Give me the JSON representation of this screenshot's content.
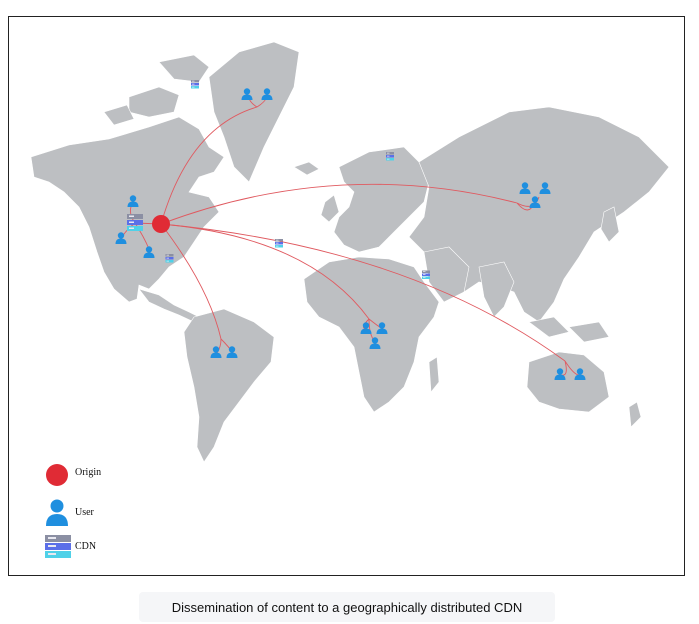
{
  "legend": {
    "origin_label": "Origin",
    "user_label": "User",
    "cdn_label": "CDN"
  },
  "caption": "Dissemination of content to a geographically distributed CDN",
  "colors": {
    "land": "#bdbfc2",
    "origin": "#e02b35",
    "link": "#e05a60",
    "user": "#1f8fdf",
    "server_body": "#8b8fa3",
    "server_accent": "#5b6fe8",
    "server_base": "#4fd1e8"
  },
  "icons": {
    "origin": "origin-node-icon",
    "user": "user-icon",
    "cdn": "cdn-server-icon"
  }
}
